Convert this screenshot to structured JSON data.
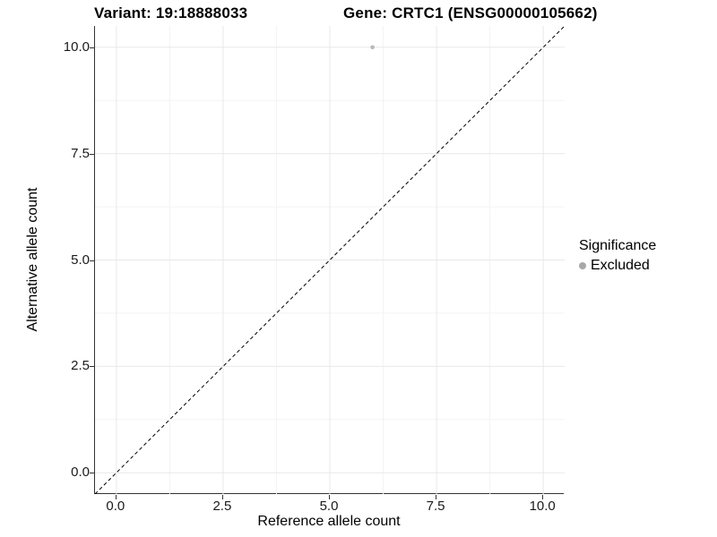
{
  "chart_data": {
    "type": "scatter",
    "titles": {
      "left": "Variant: 19:18888033",
      "right": "Gene: CRTC1 (ENSG00000105662)"
    },
    "xlabel": "Reference allele count",
    "ylabel": "Alternative allele count",
    "xlim": [
      -0.5,
      10.5
    ],
    "ylim": [
      -0.5,
      10.5
    ],
    "grid": true,
    "x_ticks": [
      {
        "value": 0,
        "label": "0.0"
      },
      {
        "value": 2.5,
        "label": "2.5"
      },
      {
        "value": 5,
        "label": "5.0"
      },
      {
        "value": 7.5,
        "label": "7.5"
      },
      {
        "value": 10,
        "label": "10.0"
      }
    ],
    "y_ticks": [
      {
        "value": 0,
        "label": "0.0"
      },
      {
        "value": 2.5,
        "label": "2.5"
      },
      {
        "value": 5,
        "label": "5.0"
      },
      {
        "value": 7.5,
        "label": "7.5"
      },
      {
        "value": 10,
        "label": "10.0"
      }
    ],
    "minor_ticks_x": [
      1.25,
      3.75,
      6.25,
      8.75
    ],
    "minor_ticks_y": [
      1.25,
      3.75,
      6.25,
      8.75
    ],
    "points": [
      {
        "x": 6,
        "y": 10,
        "series": "Excluded"
      }
    ],
    "point_radius": 2.3,
    "reference_line": {
      "slope": 1,
      "intercept": 0,
      "style": "dashed",
      "dash": "4 3"
    },
    "legend": {
      "title": "Significance",
      "position": "right",
      "entries": [
        {
          "label": "Excluded",
          "marker": "circle"
        }
      ]
    },
    "colors": {
      "point": "#b8b8b8",
      "legend_marker": "#a8a8a8",
      "reference_line": "#000000",
      "grid_major": "#e8e8e8",
      "grid_minor": "#f3f3f3",
      "axis_line": "#333333",
      "tick_label": "#1a1a1a",
      "text": "#000000",
      "background": "#ffffff"
    }
  }
}
